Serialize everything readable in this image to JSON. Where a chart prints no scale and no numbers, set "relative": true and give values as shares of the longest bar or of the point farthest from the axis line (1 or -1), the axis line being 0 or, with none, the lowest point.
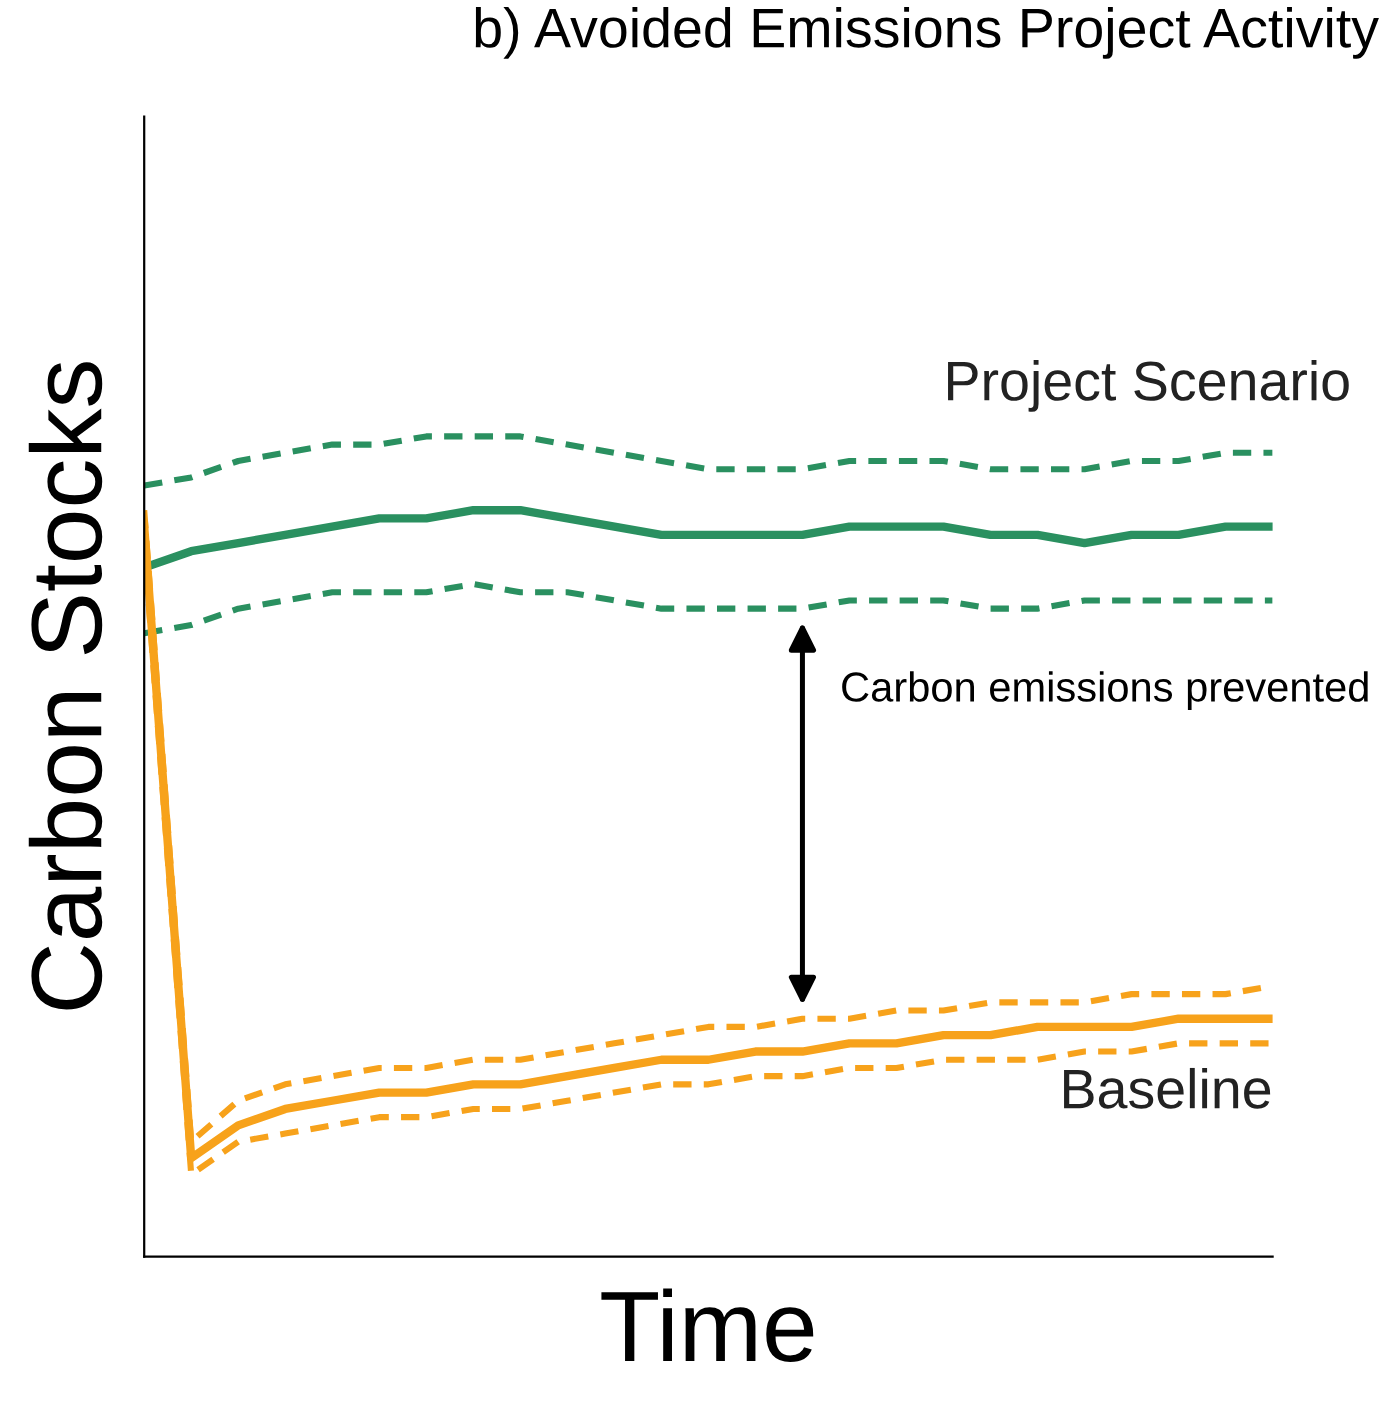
{
  "chart_data": {
    "type": "line",
    "title": "b) Avoided Emissions Project Activity",
    "xlabel": "Time",
    "ylabel": "Carbon Stocks",
    "relative": true,
    "categories": [
      null,
      null,
      null,
      null,
      null,
      null,
      null,
      null,
      null,
      null,
      null,
      null,
      null,
      null,
      null,
      null,
      null,
      null,
      null,
      null,
      null,
      null,
      null,
      null,
      null
    ],
    "series": [
      {
        "name": "Project Scenario",
        "color": "#2a9060",
        "line_style": "solid",
        "values": [
          0.84,
          0.86,
          0.87,
          0.88,
          0.89,
          0.9,
          0.9,
          0.91,
          0.91,
          0.9,
          0.89,
          0.88,
          0.88,
          0.88,
          0.88,
          0.89,
          0.89,
          0.89,
          0.88,
          0.88,
          0.87,
          0.88,
          0.88,
          0.89,
          0.89
        ]
      },
      {
        "color": "#2a9060",
        "line_style": "dashed",
        "values": [
          0.94,
          0.95,
          0.97,
          0.98,
          0.99,
          0.99,
          1.0,
          1.0,
          1.0,
          0.99,
          0.98,
          0.97,
          0.96,
          0.96,
          0.96,
          0.97,
          0.97,
          0.97,
          0.96,
          0.96,
          0.96,
          0.97,
          0.97,
          0.98,
          0.98
        ]
      },
      {
        "color": "#2a9060",
        "line_style": "dashed",
        "values": [
          0.76,
          0.77,
          0.79,
          0.8,
          0.81,
          0.81,
          0.81,
          0.82,
          0.81,
          0.81,
          0.8,
          0.79,
          0.79,
          0.79,
          0.79,
          0.8,
          0.8,
          0.8,
          0.79,
          0.79,
          0.8,
          0.8,
          0.8,
          0.8,
          0.8
        ]
      },
      {
        "name": "Baseline",
        "color": "#f7a21b",
        "line_style": "solid",
        "values": [
          0.89,
          0.12,
          0.16,
          0.18,
          0.19,
          0.2,
          0.2,
          0.21,
          0.21,
          0.22,
          0.23,
          0.24,
          0.24,
          0.25,
          0.25,
          0.26,
          0.26,
          0.27,
          0.27,
          0.28,
          0.28,
          0.28,
          0.29,
          0.29,
          0.29
        ]
      },
      {
        "color": "#f7a21b",
        "line_style": "dashed",
        "values": [
          0.91,
          0.14,
          0.19,
          0.21,
          0.22,
          0.23,
          0.23,
          0.24,
          0.24,
          0.25,
          0.26,
          0.27,
          0.28,
          0.28,
          0.29,
          0.29,
          0.3,
          0.3,
          0.31,
          0.31,
          0.31,
          0.32,
          0.32,
          0.32,
          0.33
        ]
      },
      {
        "color": "#f7a21b",
        "line_style": "dashed",
        "values": [
          0.87,
          0.1,
          0.14,
          0.15,
          0.16,
          0.17,
          0.17,
          0.18,
          0.18,
          0.19,
          0.2,
          0.21,
          0.21,
          0.22,
          0.22,
          0.23,
          0.23,
          0.24,
          0.24,
          0.24,
          0.25,
          0.25,
          0.26,
          0.26,
          0.26
        ]
      }
    ],
    "annotations": [
      "Carbon emissions prevented"
    ]
  }
}
